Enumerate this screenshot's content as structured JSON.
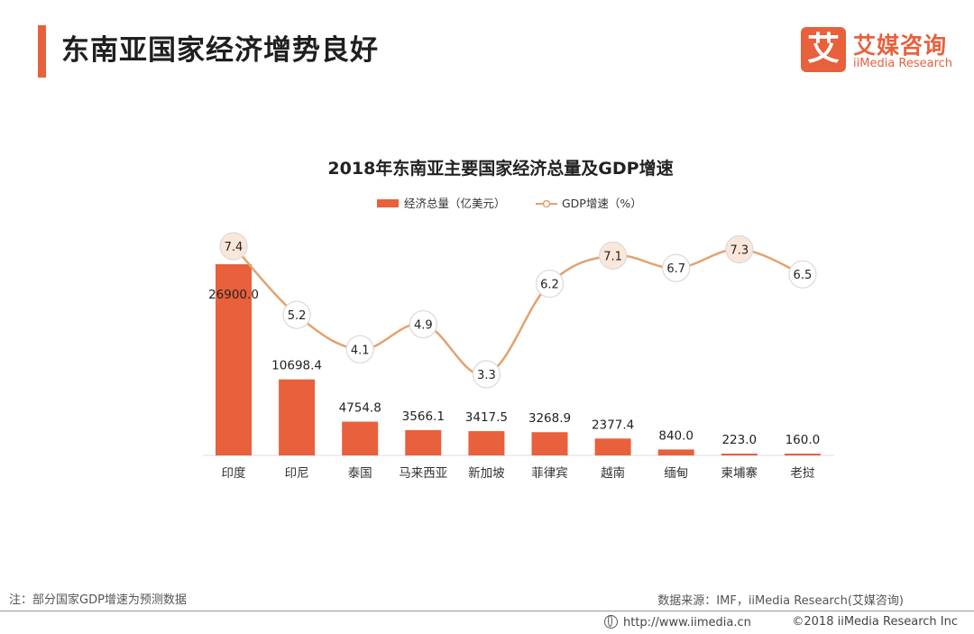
{
  "header": {
    "title": "东南亚国家经济增势良好",
    "logo_mark": "艾",
    "logo_cn": "艾媒咨询",
    "logo_en": "iiMedia Research"
  },
  "chart_data": {
    "type": "bar",
    "title": "2018年东南亚主要国家经济总量及GDP增速",
    "categories": [
      "印度",
      "印尼",
      "泰国",
      "马来西亚",
      "新加坡",
      "菲律宾",
      "越南",
      "缅甸",
      "柬埔寨",
      "老挝"
    ],
    "series": [
      {
        "name": "经济总量（亿美元）",
        "type": "bar",
        "values": [
          26900.0,
          10698.4,
          4754.8,
          3566.1,
          3417.5,
          3268.9,
          2377.4,
          840.0,
          223.0,
          160.0
        ],
        "labels": [
          "26900.0",
          "10698.4",
          "4754.8",
          "3566.1",
          "3417.5",
          "3268.9",
          "2377.4",
          "840.0",
          "223.0",
          "160.0"
        ],
        "color": "#e8603c"
      },
      {
        "name": "GDP增速（%）",
        "type": "line",
        "values": [
          7.4,
          5.2,
          4.1,
          4.9,
          3.3,
          6.2,
          7.1,
          6.7,
          7.3,
          6.5
        ],
        "labels": [
          "7.4",
          "5.2",
          "4.1",
          "4.9",
          "3.3",
          "6.2",
          "7.1",
          "6.7",
          "7.3",
          "6.5"
        ],
        "color": "#e2a26f"
      }
    ],
    "ylim_bar": [
      0,
      26900
    ],
    "ylim_line": [
      3.3,
      7.4
    ],
    "legend_position": "top-center",
    "grid": false
  },
  "footer": {
    "note": "注：部分国家GDP增速为预测数据",
    "source": "数据来源：IMF，iiMedia Research(艾媒咨询)",
    "url": "http://www.iimedia.cn",
    "copyright": "©2018  iiMedia Research  Inc"
  },
  "colors": {
    "accent": "#e8603c",
    "line": "#e2a26f",
    "marker_fill": "#ffffff",
    "marker_fill_highlight": "#fbe7da"
  }
}
